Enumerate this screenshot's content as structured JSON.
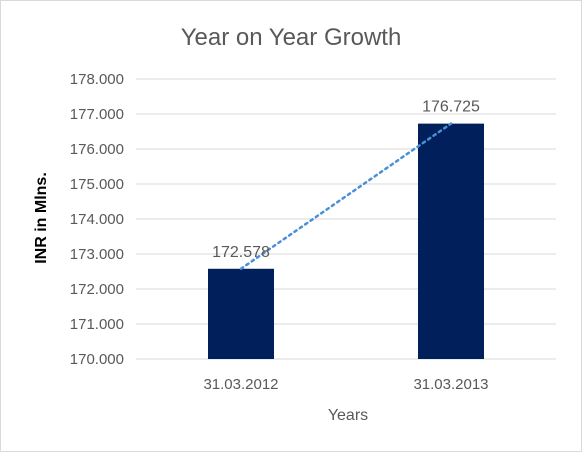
{
  "chart_data": {
    "type": "bar",
    "title": "Year on Year Growth",
    "xlabel": "Years",
    "ylabel": "INR in Mlns.",
    "categories": [
      "31.03.2012",
      "31.03.2013"
    ],
    "values": [
      172.578,
      176.725
    ],
    "data_labels": [
      "172.578",
      "176.725"
    ],
    "ylim": [
      170,
      178
    ],
    "y_ticks": [
      "170.000",
      "171.000",
      "172.000",
      "173.000",
      "174.000",
      "175.000",
      "176.000",
      "177.000",
      "178.000"
    ],
    "grid": true,
    "legend": "none",
    "trendline": {
      "type": "linear",
      "style": "dotted"
    },
    "colors": {
      "bar": "#001f5b",
      "trendline": "#4a90d9",
      "grid": "#d9d9d9",
      "text": "#595959",
      "title": "#595959",
      "ylabel": "#000000"
    }
  }
}
